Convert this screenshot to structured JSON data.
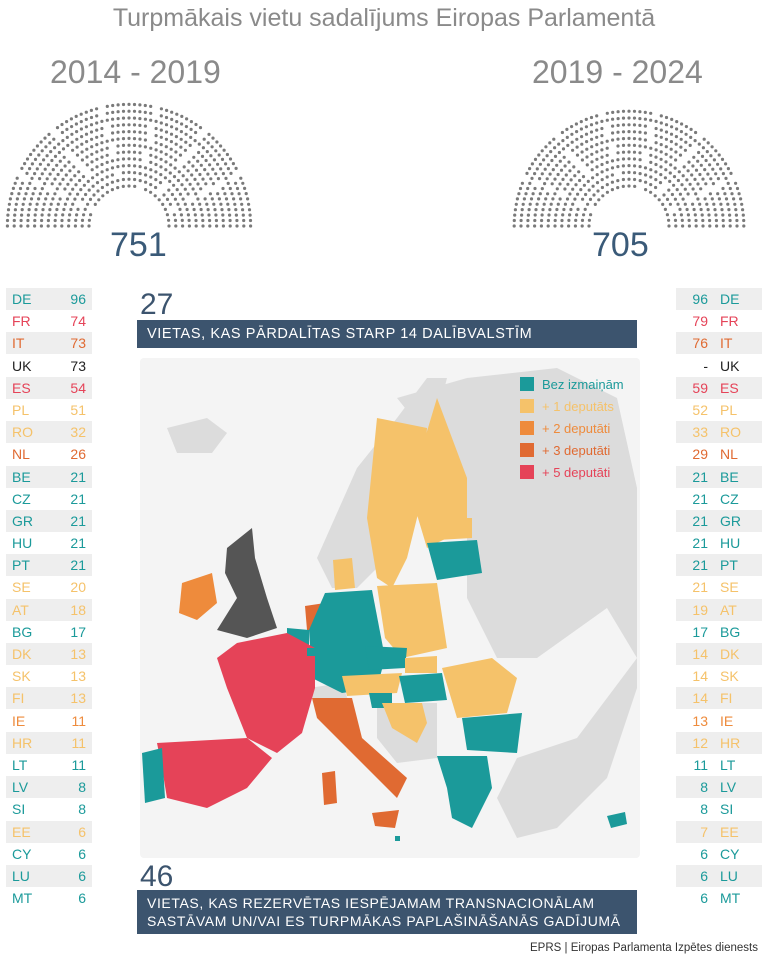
{
  "title": "Turpmākais vietu sadalījums Eiropas Parlamentā",
  "left_period": "2014 - 2019",
  "right_period": "2019 - 2024",
  "left_total": "751",
  "right_total": "705",
  "colors": {
    "unchanged": "#1b9a9a",
    "plus1": "#f5c26a",
    "plus2": "#ee8b3c",
    "plus3": "#e06a32",
    "plus5": "#e54358",
    "uk": "#555555",
    "nonmember": "#dcdcdc",
    "banner": "#3c546e"
  },
  "banner_top": {
    "number": "27",
    "text": "VIETAS, KAS PĀRDALĪTAS STARP 14 DALĪBVALSTĪM"
  },
  "banner_bottom": {
    "number": "46",
    "line1": "VIETAS, KAS REZERVĒTAS IESPĒJAMAM TRANSNACIONĀLAM",
    "line2": "SASTĀVAM UN/VAI ES TURPMĀKAS PAPLAŠINĀŠANĀS GADĪJUMĀ"
  },
  "legend": [
    {
      "label": "Bez izmaiņām",
      "color": "#1b9a9a"
    },
    {
      "label": "+ 1 deputāts",
      "color": "#f5c26a"
    },
    {
      "label": "+ 2 deputāti",
      "color": "#ee8b3c"
    },
    {
      "label": "+ 3 deputāti",
      "color": "#e06a32"
    },
    {
      "label": "+ 5 deputāti",
      "color": "#e54358"
    }
  ],
  "source": "EPRS | Eiropas Parlamenta Izpētes dienests",
  "chart_data": {
    "type": "table",
    "columns": [
      "country",
      "2014 - 2019",
      "2019 - 2024"
    ],
    "rows": [
      {
        "country": "DE",
        "before": "96",
        "after": "96",
        "change": "none"
      },
      {
        "country": "FR",
        "before": "74",
        "after": "79",
        "change": "+5"
      },
      {
        "country": "IT",
        "before": "73",
        "after": "76",
        "change": "+3"
      },
      {
        "country": "UK",
        "before": "73",
        "after": "-",
        "change": "uk"
      },
      {
        "country": "ES",
        "before": "54",
        "after": "59",
        "change": "+5"
      },
      {
        "country": "PL",
        "before": "51",
        "after": "52",
        "change": "+1"
      },
      {
        "country": "RO",
        "before": "32",
        "after": "33",
        "change": "+1"
      },
      {
        "country": "NL",
        "before": "26",
        "after": "29",
        "change": "+3"
      },
      {
        "country": "BE",
        "before": "21",
        "after": "21",
        "change": "none"
      },
      {
        "country": "CZ",
        "before": "21",
        "after": "21",
        "change": "none"
      },
      {
        "country": "GR",
        "before": "21",
        "after": "21",
        "change": "none"
      },
      {
        "country": "HU",
        "before": "21",
        "after": "21",
        "change": "none"
      },
      {
        "country": "PT",
        "before": "21",
        "after": "21",
        "change": "none"
      },
      {
        "country": "SE",
        "before": "20",
        "after": "21",
        "change": "+1"
      },
      {
        "country": "AT",
        "before": "18",
        "after": "19",
        "change": "+1"
      },
      {
        "country": "BG",
        "before": "17",
        "after": "17",
        "change": "none"
      },
      {
        "country": "DK",
        "before": "13",
        "after": "14",
        "change": "+1"
      },
      {
        "country": "SK",
        "before": "13",
        "after": "14",
        "change": "+1"
      },
      {
        "country": "FI",
        "before": "13",
        "after": "14",
        "change": "+1"
      },
      {
        "country": "IE",
        "before": "11",
        "after": "13",
        "change": "+2"
      },
      {
        "country": "HR",
        "before": "11",
        "after": "12",
        "change": "+1"
      },
      {
        "country": "LT",
        "before": "11",
        "after": "11",
        "change": "none"
      },
      {
        "country": "LV",
        "before": "8",
        "after": "8",
        "change": "none"
      },
      {
        "country": "SI",
        "before": "8",
        "after": "8",
        "change": "none"
      },
      {
        "country": "EE",
        "before": "6",
        "after": "7",
        "change": "+1"
      },
      {
        "country": "CY",
        "before": "6",
        "after": "6",
        "change": "none"
      },
      {
        "country": "LU",
        "before": "6",
        "after": "6",
        "change": "none"
      },
      {
        "country": "MT",
        "before": "6",
        "after": "6",
        "change": "none"
      }
    ]
  }
}
